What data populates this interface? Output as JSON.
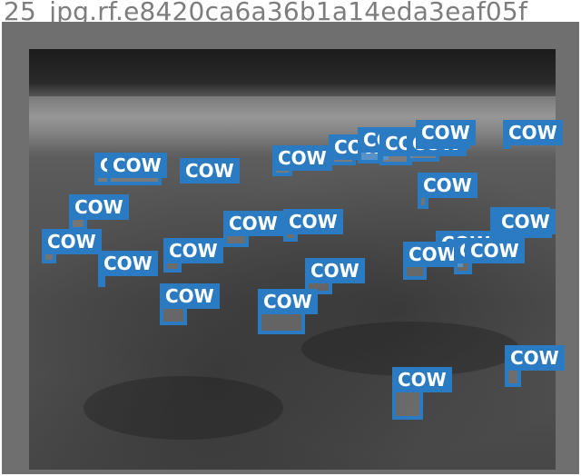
{
  "image_title": "25_jpg.rf.e8420ca6a36b1a14eda3eaf05f",
  "label_color": "#2b7bc3",
  "detections": [
    {
      "label": "COW"
    },
    {
      "label": "COW"
    },
    {
      "label": "COW"
    },
    {
      "label": "COW"
    },
    {
      "label": "COW"
    },
    {
      "label": "COW"
    },
    {
      "label": "COW"
    },
    {
      "label": "COW"
    },
    {
      "label": "COW"
    },
    {
      "label": "COW"
    },
    {
      "label": "COW"
    },
    {
      "label": "COW"
    },
    {
      "label": "COW"
    },
    {
      "label": "COW"
    },
    {
      "label": "COW"
    },
    {
      "label": "COW"
    },
    {
      "label": "COW"
    },
    {
      "label": "COW"
    },
    {
      "label": "COW"
    },
    {
      "label": "COW"
    },
    {
      "label": "COW"
    },
    {
      "label": "COW"
    },
    {
      "label": "COW"
    },
    {
      "label": "COW"
    },
    {
      "label": "COW"
    },
    {
      "label": "COW"
    },
    {
      "label": "COW"
    },
    {
      "label": "COW"
    }
  ]
}
